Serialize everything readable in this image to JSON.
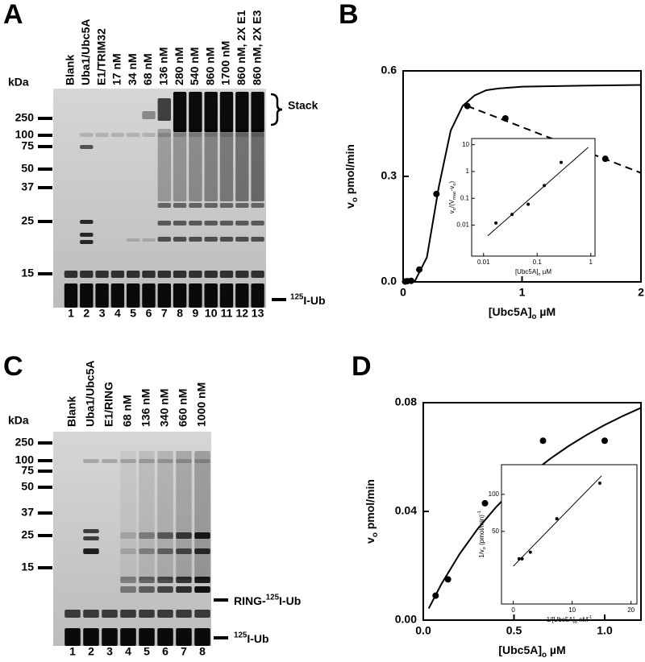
{
  "gels": [
    {
      "letter": "A",
      "unit": "kDa",
      "lanes": [
        "Blank",
        "Uba1/Ubc5A",
        "E1/TRIM32",
        "17 nM",
        "34 nM",
        "68 nM",
        "136 nM",
        "280 nM",
        "540 nM",
        "860 nM",
        "1700 nM",
        "860 nM, 2X E1",
        "860 nM, 2X E3"
      ],
      "lane_numbers": [
        "1",
        "2",
        "3",
        "4",
        "5",
        "6",
        "7",
        "8",
        "9",
        "10",
        "11",
        "12",
        "13"
      ],
      "markers": [
        "250",
        "100",
        "75",
        "50",
        "37",
        "25",
        "15"
      ],
      "stack_label": "Stack",
      "bottom_label": [
        {
          "sup": "125"
        },
        "I-Ub"
      ]
    },
    {
      "letter": "C",
      "unit": "kDa",
      "lanes": [
        "Blank",
        "Uba1/Ubc5A",
        "E1/RING",
        "68 nM",
        "136 nM",
        "340 nM",
        "660 nM",
        "1000 nM"
      ],
      "lane_numbers": [
        "1",
        "2",
        "3",
        "4",
        "5",
        "6",
        "7",
        "8"
      ],
      "markers": [
        "250",
        "100",
        "75",
        "50",
        "37",
        "25",
        "15"
      ],
      "middle_label": [
        "RING-",
        {
          "sup": "125"
        },
        "I-Ub"
      ],
      "bottom_label": [
        {
          "sup": "125"
        },
        "I-Ub"
      ]
    }
  ],
  "chart_data": [
    {
      "type": "scatter",
      "letter": "B",
      "x_label": [
        "[Ubc5A]",
        {
          "sub": "o"
        },
        " µM"
      ],
      "y_label": [
        "v",
        {
          "sub": "o"
        },
        " pmol/min"
      ],
      "xlim": [
        0,
        2
      ],
      "ylim": [
        0,
        0.6
      ],
      "xticks": [
        0,
        1,
        2
      ],
      "yticks": [
        {
          "value": 0,
          "label": "0.0"
        },
        0.3,
        0.6
      ],
      "series": [
        {
          "style": "points",
          "color": "#000000",
          "x": [
            0.017,
            0.034,
            0.068,
            0.136,
            0.28,
            0.54,
            0.86,
            1.7
          ],
          "values": [
            0.001,
            0.002,
            0.003,
            0.035,
            0.25,
            0.5,
            0.465,
            0.35
          ]
        },
        {
          "style": "solid",
          "color": "#000000",
          "x": [
            0,
            0.1,
            0.2,
            0.3,
            0.4,
            0.5,
            0.6,
            0.7,
            0.8,
            1.0,
            1.5,
            2.0
          ],
          "values": [
            0,
            0.003,
            0.07,
            0.27,
            0.43,
            0.5,
            0.53,
            0.545,
            0.55,
            0.555,
            0.558,
            0.56
          ]
        },
        {
          "style": "dashed",
          "color": "#000000",
          "x": [
            0.54,
            2.0
          ],
          "values": [
            0.5,
            0.31
          ]
        }
      ],
      "inset": {
        "log_x": true,
        "log_y": true,
        "x_label": [
          "[Ubc5A]",
          {
            "sub": "o"
          },
          " µM"
        ],
        "y_label": [
          "v",
          {
            "sub": "o"
          },
          "/(V",
          {
            "sub": "max"
          },
          "-v",
          {
            "sub": "o"
          },
          ")"
        ],
        "xlim": [
          0.006,
          1.2
        ],
        "ylim": [
          0.0007,
          17
        ],
        "xticks": [
          0.01,
          0.1,
          1
        ],
        "yticks": [
          0.01,
          0.1,
          1,
          10
        ],
        "series": [
          {
            "style": "points",
            "color": "#000000",
            "x": [
              0.017,
              0.034,
              0.068,
              0.136,
              0.28
            ],
            "values": [
              0.012,
              0.025,
              0.06,
              0.3,
              2.2
            ]
          },
          {
            "style": "solid",
            "color": "#000000",
            "x": [
              0.012,
              0.9
            ],
            "values": [
              0.004,
              8
            ]
          }
        ]
      }
    },
    {
      "type": "scatter",
      "letter": "D",
      "x_label": [
        "[Ubc5A]",
        {
          "sub": "o"
        },
        " µM"
      ],
      "y_label": [
        "v",
        {
          "sub": "o"
        },
        " pmol/min"
      ],
      "xlim": [
        0,
        1.2
      ],
      "ylim": [
        0,
        0.08
      ],
      "xticks": [
        {
          "value": 0,
          "label": "0.0"
        },
        0.5,
        {
          "value": 1,
          "label": "1.0"
        }
      ],
      "yticks": [
        {
          "value": 0,
          "label": "0.00"
        },
        0.04,
        0.08
      ],
      "series": [
        {
          "style": "points",
          "color": "#000000",
          "x": [
            0.068,
            0.136,
            0.34,
            0.66,
            1.0
          ],
          "values": [
            0.009,
            0.015,
            0.043,
            0.066,
            0.066
          ]
        },
        {
          "style": "solid",
          "color": "#000000",
          "x": [
            0.03,
            0.1,
            0.2,
            0.3,
            0.4,
            0.5,
            0.6,
            0.7,
            0.8,
            0.9,
            1.0,
            1.1,
            1.2
          ],
          "values": [
            0.0043,
            0.0133,
            0.0243,
            0.0336,
            0.0415,
            0.0483,
            0.0542,
            0.0594,
            0.064,
            0.0681,
            0.0718,
            0.0751,
            0.0781
          ]
        }
      ],
      "inset": {
        "log_x": false,
        "log_y": false,
        "x_label": [
          "1/[Ubc5A]",
          {
            "sub": "o"
          },
          " nM",
          {
            "sup": "-1"
          }
        ],
        "y_label": [
          "1/v",
          {
            "sub": "o"
          },
          " (pmol/min)",
          {
            "sup": "-1"
          }
        ],
        "xlim": [
          -2,
          21
        ],
        "ylim": [
          -48,
          140
        ],
        "xticks": [
          0,
          10,
          20
        ],
        "yticks": [
          50,
          100
        ],
        "series": [
          {
            "style": "points",
            "color": "#000000",
            "x": [
              1.0,
              1.5,
              2.9,
              7.4,
              14.7
            ],
            "values": [
              13,
              13,
              22,
              67,
              115
            ]
          },
          {
            "style": "solid",
            "color": "#000000",
            "x": [
              0,
              15
            ],
            "values": [
              3,
              125
            ]
          }
        ]
      }
    }
  ]
}
